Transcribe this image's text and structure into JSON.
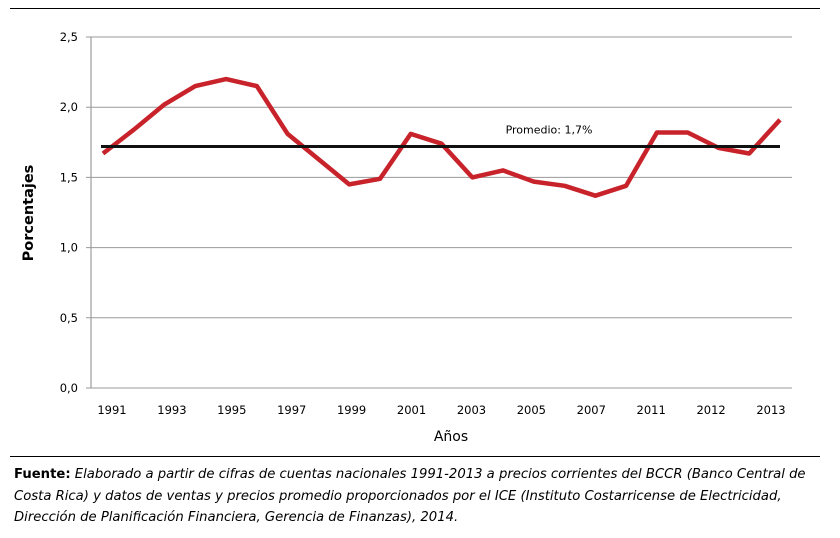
{
  "chart_data": {
    "type": "line",
    "title": "",
    "xlabel": "Años",
    "ylabel": "Porcentajes",
    "x": [
      1991,
      1992,
      1993,
      1994,
      1995,
      1996,
      1997,
      1998,
      1999,
      2000,
      2001,
      2002,
      2003,
      2004,
      2005,
      2006,
      2007,
      2008,
      2009,
      2010,
      2011,
      2012,
      2013
    ],
    "x_tick_labels": [
      "1991",
      "1993",
      "1995",
      "1997",
      "1999",
      "2001",
      "2003",
      "2005",
      "2007",
      "2011",
      "2012",
      "2013"
    ],
    "series": [
      {
        "values": [
          1.67,
          1.84,
          2.02,
          2.15,
          2.2,
          2.15,
          1.81,
          1.63,
          1.45,
          1.49,
          1.81,
          1.74,
          1.5,
          1.55,
          1.47,
          1.44,
          1.37,
          1.44,
          1.82,
          1.82,
          1.71,
          1.67,
          1.91
        ],
        "color": "#c8232b"
      }
    ],
    "average": {
      "value": 1.72,
      "label": "Promedio: 1,7%",
      "color": "#111111"
    },
    "y_ticks": [
      "0,0",
      "0,5",
      "1,0",
      "1,5",
      "2,0",
      "2,5"
    ],
    "ylim": [
      0,
      2.5
    ],
    "grid": true
  },
  "source": {
    "label": "Fuente:",
    "text": "Elaborado a partir de cifras de cuentas nacionales 1991-2013 a precios corrientes del BCCR (Banco Central de Costa Rica) y datos de ventas y precios promedio proporcionados por el ICE (Instituto Costarricense de Electricidad, Dirección de Planificación Financiera, Gerencia de Finanzas), 2014."
  }
}
